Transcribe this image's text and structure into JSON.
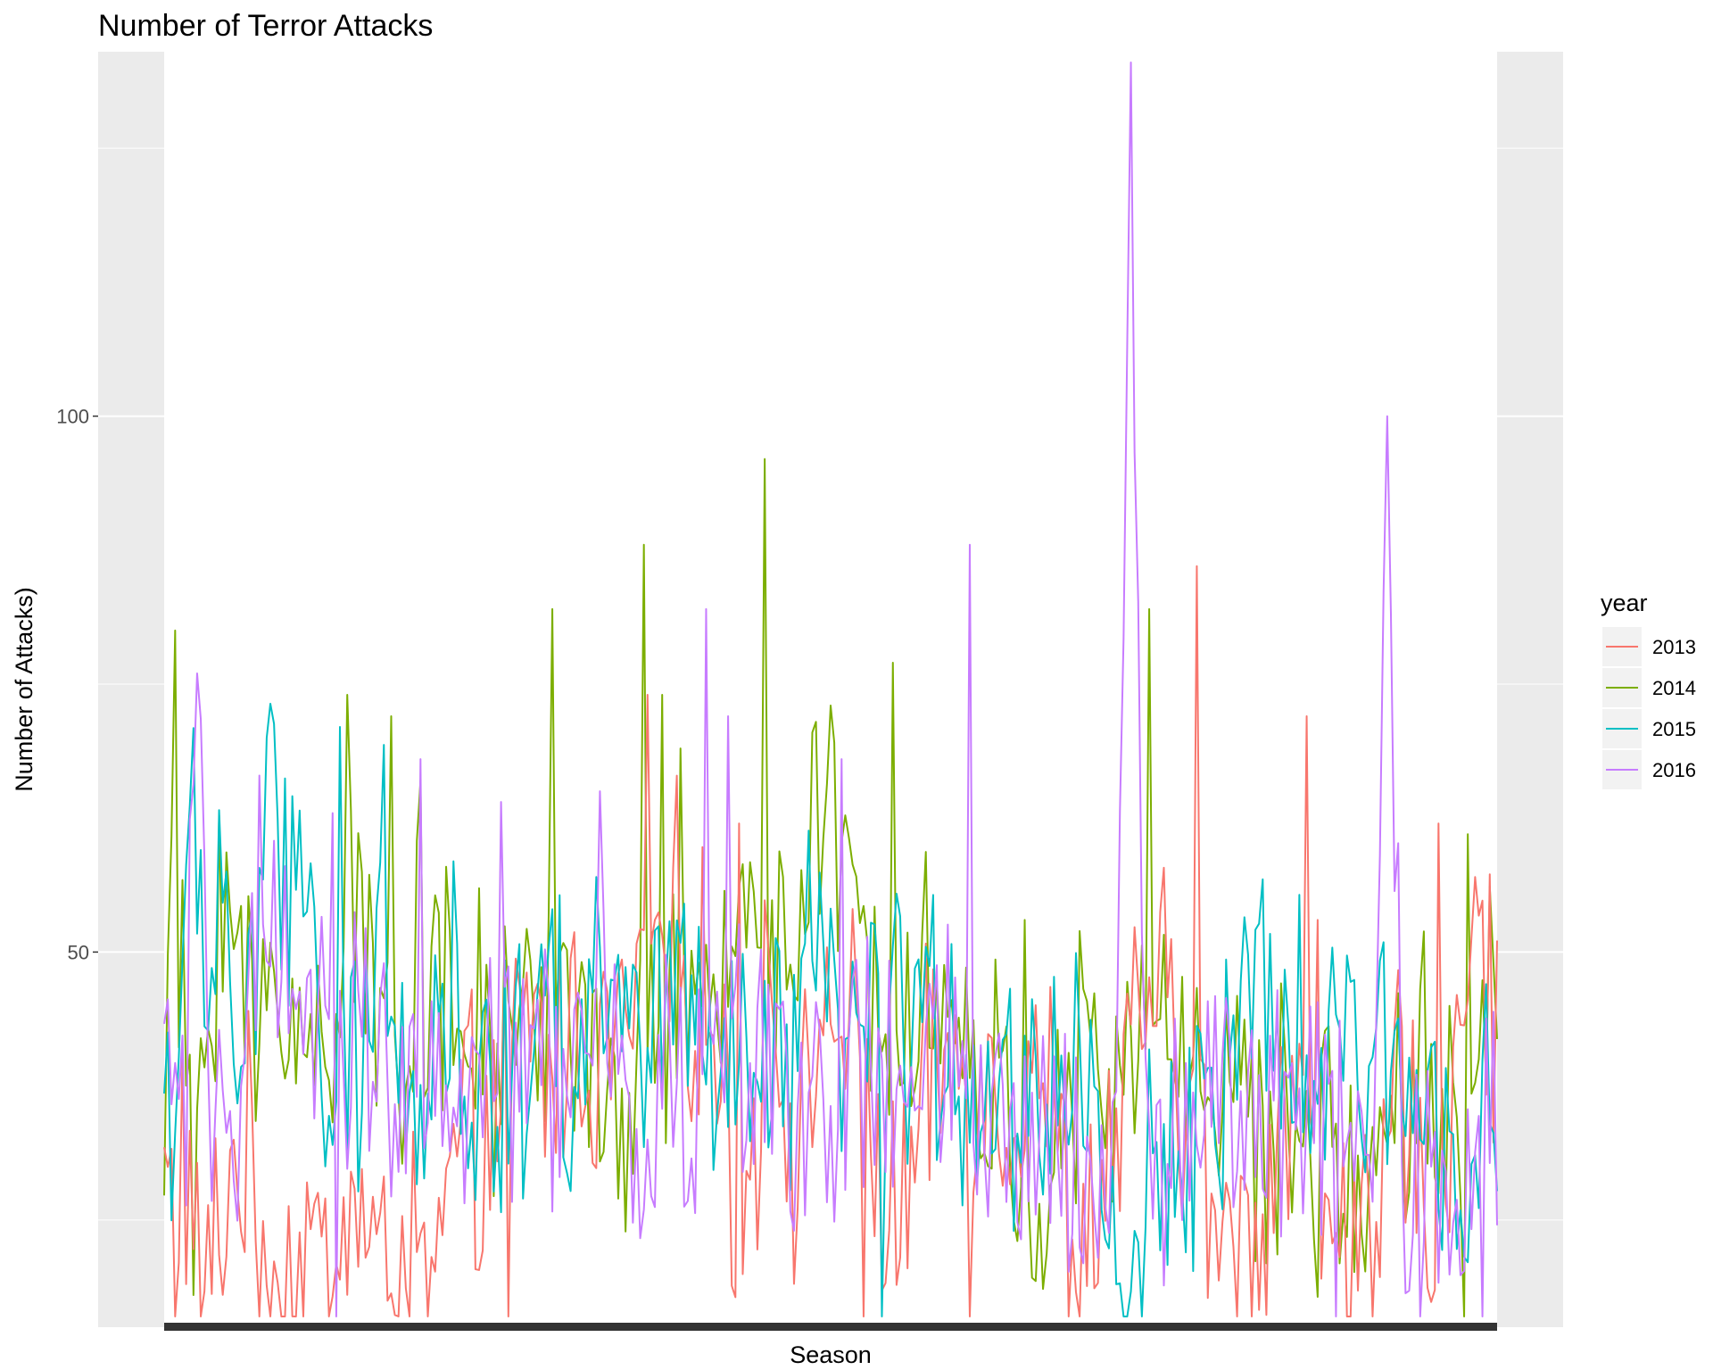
{
  "chart_data": {
    "type": "line",
    "title": "Number of Terror Attacks",
    "xlabel": "Season",
    "ylabel": "Number of Attacks)",
    "x_points": 365,
    "ylim": [
      15,
      134
    ],
    "yticks": [
      50,
      100
    ],
    "grid": true,
    "legend": {
      "title": "year",
      "placement": "right",
      "entries": [
        "2013",
        "2014",
        "2015",
        "2016"
      ]
    },
    "series": [
      {
        "name": "2013",
        "color": "#F8766D",
        "keypoints": [
          [
            0,
            30
          ],
          [
            1,
            26
          ],
          [
            2,
            27
          ],
          [
            3,
            20
          ],
          [
            5,
            33
          ],
          [
            10,
            15
          ],
          [
            20,
            32
          ],
          [
            30,
            22
          ],
          [
            33,
            17
          ],
          [
            40,
            24
          ],
          [
            45,
            16
          ],
          [
            50,
            28
          ],
          [
            60,
            19
          ],
          [
            65,
            23
          ],
          [
            72,
            16
          ],
          [
            80,
            30
          ],
          [
            90,
            33
          ],
          [
            100,
            45
          ],
          [
            105,
            38
          ],
          [
            110,
            43
          ],
          [
            120,
            40
          ],
          [
            130,
            45
          ],
          [
            140,
            51
          ],
          [
            150,
            43
          ],
          [
            155,
            30
          ],
          [
            160,
            27
          ],
          [
            165,
            52
          ],
          [
            170,
            35
          ],
          [
            175,
            33
          ],
          [
            180,
            47
          ],
          [
            190,
            38
          ],
          [
            200,
            22
          ],
          [
            210,
            38
          ],
          [
            220,
            40
          ],
          [
            230,
            35
          ],
          [
            237,
            42
          ],
          [
            240,
            40
          ],
          [
            250,
            17
          ],
          [
            255,
            28
          ],
          [
            260,
            32
          ],
          [
            270,
            48
          ],
          [
            280,
            35
          ],
          [
            290,
            20
          ],
          [
            300,
            26
          ],
          [
            305,
            35
          ],
          [
            310,
            40
          ],
          [
            315,
            24
          ],
          [
            320,
            30
          ],
          [
            330,
            17
          ],
          [
            338,
            41
          ],
          [
            340,
            30
          ],
          [
            350,
            25
          ],
          [
            355,
            51
          ],
          [
            360,
            48
          ],
          [
            364,
            41
          ]
        ],
        "peaks": [
          [
            26,
            14
          ],
          [
            94,
            14
          ],
          [
            132,
            74
          ],
          [
            157,
            62
          ],
          [
            176,
            40
          ],
          [
            191,
            14
          ],
          [
            220,
            16
          ],
          [
            282,
            86
          ],
          [
            312,
            72
          ],
          [
            315,
            53
          ],
          [
            330,
            15
          ],
          [
            348,
            62
          ],
          [
            353,
            46
          ],
          [
            358,
            57
          ]
        ]
      },
      {
        "name": "2014",
        "color": "#7CAE00",
        "keypoints": [
          [
            0,
            33
          ],
          [
            1,
            45
          ],
          [
            2,
            48
          ],
          [
            3,
            80
          ],
          [
            4,
            45
          ],
          [
            6,
            40
          ],
          [
            8,
            35
          ],
          [
            10,
            37
          ],
          [
            15,
            57
          ],
          [
            20,
            50
          ],
          [
            25,
            40
          ],
          [
            30,
            48
          ],
          [
            40,
            40
          ],
          [
            45,
            42
          ],
          [
            50,
            58
          ],
          [
            60,
            40
          ],
          [
            70,
            48
          ],
          [
            80,
            42
          ],
          [
            90,
            40
          ],
          [
            100,
            45
          ],
          [
            110,
            50
          ],
          [
            115,
            40
          ],
          [
            120,
            30
          ],
          [
            130,
            40
          ],
          [
            140,
            45
          ],
          [
            150,
            40
          ],
          [
            160,
            60
          ],
          [
            170,
            48
          ],
          [
            180,
            60
          ],
          [
            190,
            50
          ],
          [
            200,
            45
          ],
          [
            210,
            48
          ],
          [
            220,
            38
          ],
          [
            230,
            35
          ],
          [
            240,
            25
          ],
          [
            245,
            30
          ],
          [
            250,
            40
          ],
          [
            260,
            35
          ],
          [
            270,
            45
          ],
          [
            280,
            40
          ],
          [
            290,
            40
          ],
          [
            300,
            30
          ],
          [
            310,
            35
          ],
          [
            320,
            28
          ],
          [
            330,
            30
          ],
          [
            340,
            42
          ],
          [
            350,
            35
          ],
          [
            355,
            25
          ],
          [
            360,
            46
          ],
          [
            364,
            50
          ]
        ],
        "peaks": [
          [
            3,
            80
          ],
          [
            8,
            18
          ],
          [
            50,
            74
          ],
          [
            62,
            72
          ],
          [
            70,
            66
          ],
          [
            106,
            82
          ],
          [
            124,
            27
          ],
          [
            131,
            88
          ],
          [
            136,
            74
          ],
          [
            141,
            69
          ],
          [
            164,
            96
          ],
          [
            182,
            73
          ],
          [
            199,
            77
          ],
          [
            210,
            41
          ],
          [
            235,
            53
          ],
          [
            260,
            44
          ],
          [
            269,
            82
          ],
          [
            274,
            40
          ],
          [
            320,
            34
          ],
          [
            339,
            25
          ],
          [
            347,
            29
          ],
          [
            356,
            61
          ]
        ]
      },
      {
        "name": "2015",
        "color": "#00BFC4",
        "keypoints": [
          [
            0,
            38
          ],
          [
            3,
            35
          ],
          [
            5,
            50
          ],
          [
            8,
            58
          ],
          [
            12,
            45
          ],
          [
            15,
            60
          ],
          [
            20,
            40
          ],
          [
            25,
            48
          ],
          [
            28,
            70
          ],
          [
            32,
            50
          ],
          [
            40,
            62
          ],
          [
            44,
            30
          ],
          [
            50,
            35
          ],
          [
            55,
            40
          ],
          [
            60,
            58
          ],
          [
            65,
            45
          ],
          [
            70,
            35
          ],
          [
            80,
            50
          ],
          [
            85,
            27
          ],
          [
            90,
            40
          ],
          [
            95,
            40
          ],
          [
            100,
            45
          ],
          [
            105,
            55
          ],
          [
            110,
            35
          ],
          [
            115,
            48
          ],
          [
            120,
            46
          ],
          [
            130,
            40
          ],
          [
            140,
            50
          ],
          [
            145,
            40
          ],
          [
            150,
            35
          ],
          [
            155,
            37
          ],
          [
            170,
            38
          ],
          [
            175,
            47
          ],
          [
            180,
            45
          ],
          [
            190,
            40
          ],
          [
            200,
            45
          ],
          [
            210,
            42
          ],
          [
            220,
            40
          ],
          [
            230,
            35
          ],
          [
            240,
            38
          ],
          [
            250,
            40
          ],
          [
            255,
            35
          ],
          [
            262,
            11
          ],
          [
            270,
            30
          ],
          [
            280,
            35
          ],
          [
            290,
            38
          ],
          [
            300,
            45
          ],
          [
            310,
            40
          ],
          [
            320,
            38
          ],
          [
            330,
            40
          ],
          [
            340,
            38
          ],
          [
            350,
            35
          ],
          [
            358,
            35
          ],
          [
            364,
            32
          ]
        ],
        "peaks": [
          [
            28,
            70
          ],
          [
            44,
            30
          ],
          [
            48,
            71
          ],
          [
            98,
            27
          ],
          [
            106,
            54
          ],
          [
            118,
            57
          ],
          [
            196,
            16
          ],
          [
            262,
            11
          ],
          [
            289,
            26
          ],
          [
            342,
            39
          ],
          [
            362,
            34
          ]
        ]
      },
      {
        "name": "2016",
        "color": "#C77CFF",
        "keypoints": [
          [
            0,
            40
          ],
          [
            3,
            38
          ],
          [
            6,
            35
          ],
          [
            9,
            76
          ],
          [
            12,
            30
          ],
          [
            15,
            42
          ],
          [
            20,
            35
          ],
          [
            25,
            52
          ],
          [
            30,
            48
          ],
          [
            35,
            40
          ],
          [
            40,
            38
          ],
          [
            45,
            54
          ],
          [
            50,
            40
          ],
          [
            55,
            46
          ],
          [
            60,
            42
          ],
          [
            65,
            35
          ],
          [
            70,
            35
          ],
          [
            75,
            40
          ],
          [
            80,
            33
          ],
          [
            90,
            38
          ],
          [
            100,
            42
          ],
          [
            110,
            36
          ],
          [
            120,
            44
          ],
          [
            130,
            30
          ],
          [
            135,
            40
          ],
          [
            140,
            35
          ],
          [
            150,
            38
          ],
          [
            155,
            42
          ],
          [
            160,
            36
          ],
          [
            170,
            40
          ],
          [
            180,
            35
          ],
          [
            190,
            38
          ],
          [
            200,
            36
          ],
          [
            210,
            40
          ],
          [
            220,
            35
          ],
          [
            230,
            30
          ],
          [
            240,
            35
          ],
          [
            250,
            30
          ],
          [
            260,
            32
          ],
          [
            264,
            133
          ],
          [
            265,
            100
          ],
          [
            268,
            30
          ],
          [
            280,
            35
          ],
          [
            290,
            38
          ],
          [
            300,
            32
          ],
          [
            310,
            36
          ],
          [
            320,
            40
          ],
          [
            330,
            30
          ],
          [
            334,
            100
          ],
          [
            338,
            30
          ],
          [
            345,
            36
          ],
          [
            350,
            25
          ],
          [
            360,
            28
          ],
          [
            364,
            35
          ]
        ],
        "peaks": [
          [
            9,
            76
          ],
          [
            47,
            14
          ],
          [
            70,
            68
          ],
          [
            92,
            64
          ],
          [
            119,
            65
          ],
          [
            148,
            82
          ],
          [
            154,
            72
          ],
          [
            185,
            68
          ],
          [
            220,
            88
          ],
          [
            264,
            133
          ],
          [
            320,
            14
          ],
          [
            334,
            100
          ],
          [
            343,
            11
          ],
          [
            360,
            14
          ]
        ]
      }
    ]
  }
}
